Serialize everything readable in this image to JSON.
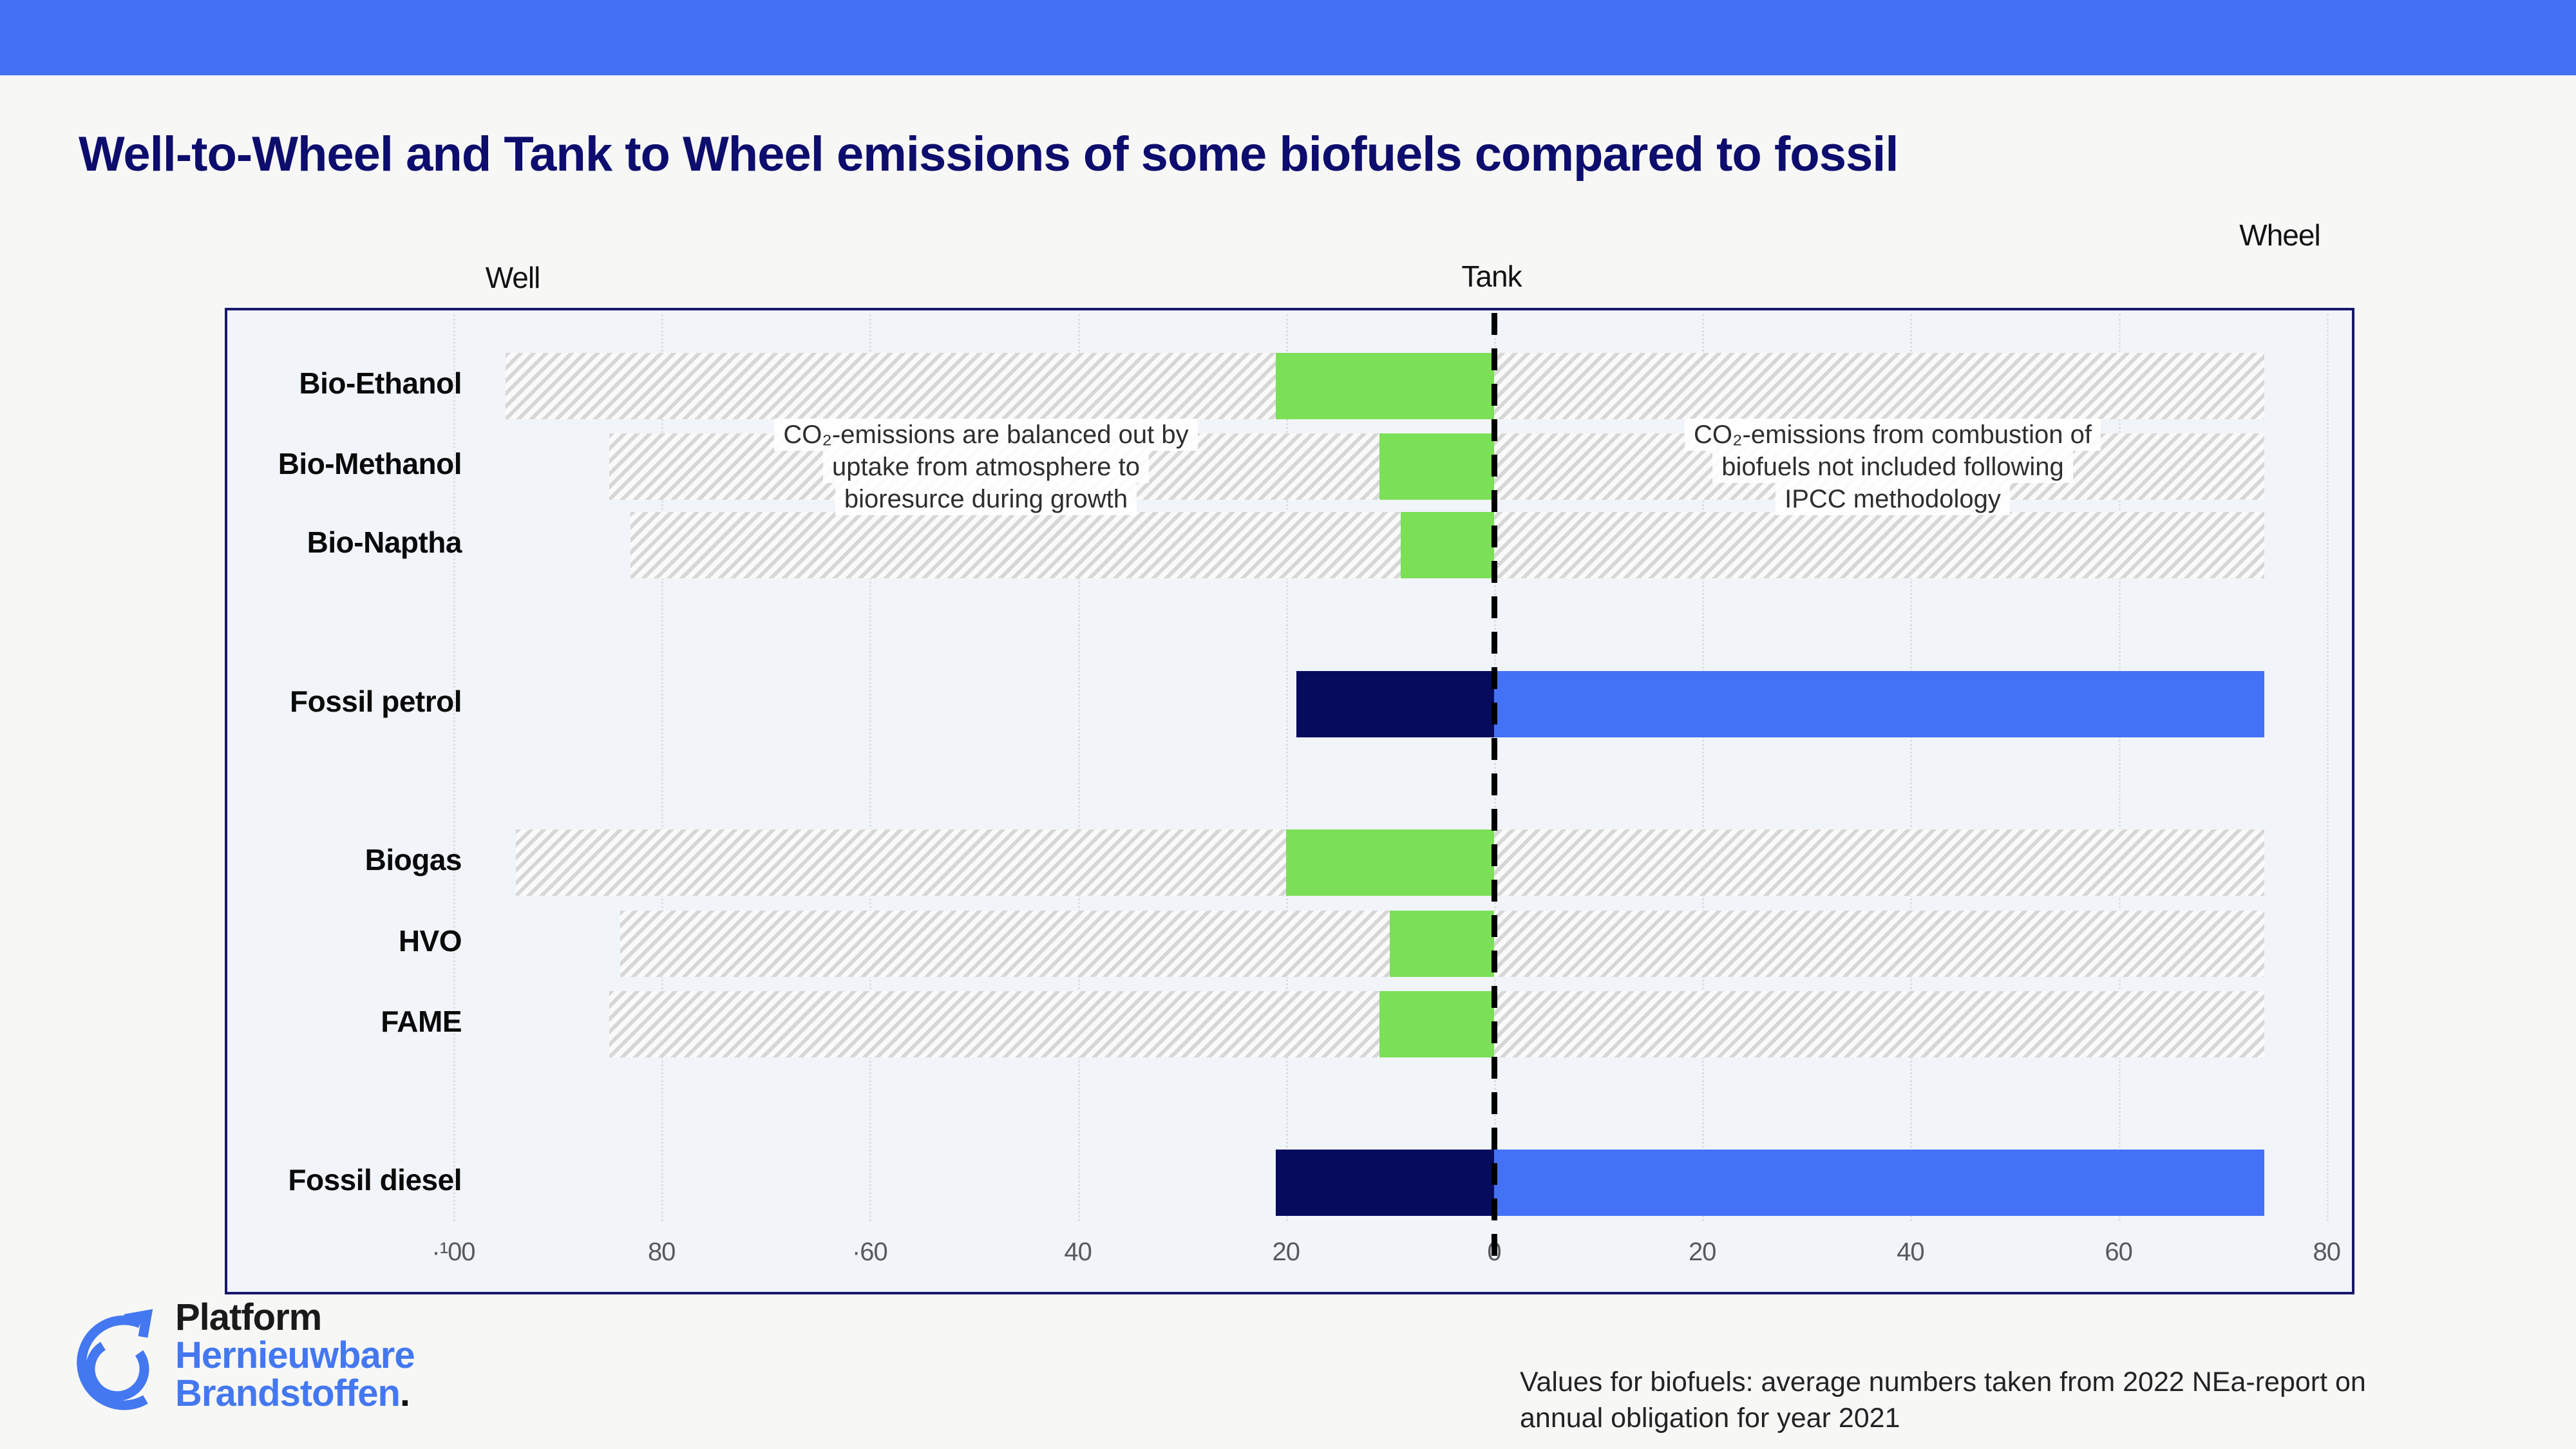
{
  "header": {
    "bar_color": "#4470f4"
  },
  "title": "Well-to-Wheel and Tank to Wheel emissions of some biofuels compared to fossil",
  "stage_labels": {
    "well": "Well",
    "tank": "Tank",
    "wheel": "Wheel"
  },
  "annotations": {
    "left": {
      "lines": [
        "CO₂-emissions are balanced out by",
        "uptake from atmosphere to",
        "bioresurce during growth"
      ]
    },
    "right": {
      "lines": [
        "CO₂-emissions from combustion of",
        "biofuels not included following",
        "IPCC methodology"
      ]
    }
  },
  "footnote": {
    "lines": [
      "Values for biofuels: average numbers taken from 2022 NEa-report on",
      "annual obligation for year 2021"
    ]
  },
  "logo": {
    "line1": "Platform",
    "line2": "Hernieuwbare",
    "line3": "Brandstoffen",
    "period": "."
  },
  "colors": {
    "accent_blue": "#4470f4",
    "title_navy": "#0d0d6e",
    "bar_green": "#7cdf58",
    "bar_navy": "#070b5e",
    "bar_blue": "#4472f7",
    "chart_bg": "#f1f4f9",
    "chart_border": "#18186a",
    "logo_blue": "#4478f0"
  },
  "chart_data": {
    "type": "bar",
    "orientation": "horizontal",
    "title": "Well-to-Wheel and Tank to Wheel emissions of some biofuels compared to fossil",
    "xlabel": "",
    "ylabel": "",
    "axis_range": [
      -122,
      83
    ],
    "grid": "vertical-dotted",
    "zero_line": {
      "x": 0,
      "style": "dashed",
      "color": "#000000"
    },
    "x_axis": {
      "tick_values": [
        -100,
        -80,
        -60,
        -40,
        -20,
        0,
        20,
        40,
        60,
        80
      ],
      "tick_labels": [
        "·¹00",
        "80",
        "·60",
        "40",
        "20",
        "0",
        "20",
        "40",
        "60",
        "80"
      ]
    },
    "rows": [
      {
        "label": "Bio-Ethanol",
        "kind": "biofuel",
        "balanced_from": -95,
        "balanced_to": 74,
        "chain_emission": -21
      },
      {
        "label": "Bio-Methanol",
        "kind": "biofuel",
        "balanced_from": -85,
        "balanced_to": 74,
        "chain_emission": -11
      },
      {
        "label": "Bio-Naptha",
        "kind": "biofuel",
        "balanced_from": -83,
        "balanced_to": 74,
        "chain_emission": -9
      },
      {
        "label": "Fossil petrol",
        "kind": "fossil",
        "well_to_tank": -19,
        "tank_to_wheel": 74
      },
      {
        "label": "Biogas",
        "kind": "biofuel",
        "balanced_from": -94,
        "balanced_to": 74,
        "chain_emission": -20
      },
      {
        "label": "HVO",
        "kind": "biofuel",
        "balanced_from": -84,
        "balanced_to": 74,
        "chain_emission": -10
      },
      {
        "label": "FAME",
        "kind": "biofuel",
        "balanced_from": -85,
        "balanced_to": 74,
        "chain_emission": -11
      },
      {
        "label": "Fossil diesel",
        "kind": "fossil",
        "well_to_tank": -21,
        "tank_to_wheel": 74
      }
    ]
  }
}
